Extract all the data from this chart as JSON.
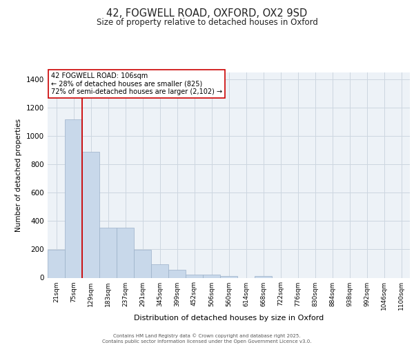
{
  "title_line1": "42, FOGWELL ROAD, OXFORD, OX2 9SD",
  "title_line2": "Size of property relative to detached houses in Oxford",
  "xlabel": "Distribution of detached houses by size in Oxford",
  "ylabel": "Number of detached properties",
  "annotation_line1": "42 FOGWELL ROAD: 106sqm",
  "annotation_line2": "← 28% of detached houses are smaller (825)",
  "annotation_line3": "72% of semi-detached houses are larger (2,102) →",
  "footer_line1": "Contains HM Land Registry data © Crown copyright and database right 2025.",
  "footer_line2": "Contains public sector information licensed under the Open Government Licence v3.0.",
  "bar_color": "#c8d8ea",
  "bar_edge_color": "#9ab0c8",
  "red_line_x": 1.5,
  "red_line_color": "#cc0000",
  "categories": [
    "21sqm",
    "75sqm",
    "129sqm",
    "183sqm",
    "237sqm",
    "291sqm",
    "345sqm",
    "399sqm",
    "452sqm",
    "506sqm",
    "560sqm",
    "614sqm",
    "668sqm",
    "722sqm",
    "776sqm",
    "830sqm",
    "884sqm",
    "938sqm",
    "992sqm",
    "1046sqm",
    "1100sqm"
  ],
  "values": [
    195,
    1120,
    890,
    355,
    355,
    195,
    95,
    55,
    22,
    20,
    14,
    0,
    12,
    0,
    0,
    0,
    0,
    0,
    0,
    0,
    0
  ],
  "ylim": [
    0,
    1450
  ],
  "yticks": [
    0,
    200,
    400,
    600,
    800,
    1000,
    1200,
    1400
  ],
  "bg_color": "#edf2f7",
  "grid_color": "#ccd6e0",
  "annotation_bg": "#ffffff",
  "annotation_edge": "#cc0000"
}
